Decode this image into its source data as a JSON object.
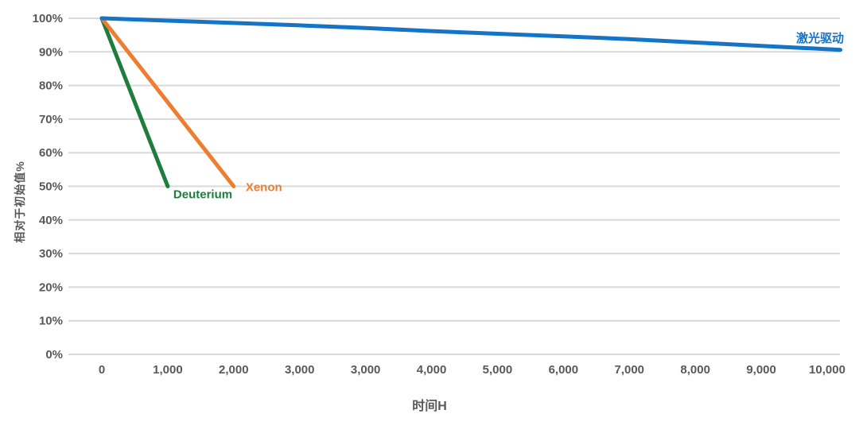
{
  "chart_data": {
    "type": "line",
    "title": "",
    "xlabel": "时间H",
    "ylabel": "相对于初始值%",
    "x_tick_labels": [
      "0",
      "1,000",
      "2,000",
      "3,000",
      "3,000",
      "4,000",
      "5,000",
      "6,000",
      "7,000",
      "8,000",
      "9,000",
      "10,000"
    ],
    "y_tick_labels": [
      "100%",
      "90%",
      "80%",
      "70%",
      "60%",
      "50%",
      "40%",
      "30%",
      "20%",
      "10%",
      "0%"
    ],
    "ylim": [
      0,
      100
    ],
    "grid": "horizontal",
    "grid_color": "#d9d9d9",
    "axis_text_color": "#595959",
    "background_color": "#ffffff",
    "series": [
      {
        "name": "Deuterium",
        "color": "#1e7c3c",
        "points": [
          [
            0,
            100
          ],
          [
            1,
            50
          ]
        ],
        "note": "drops linearly from 100% at 0 h to 50% at 1,000 h"
      },
      {
        "name": "Xenon",
        "color": "#ed7d31",
        "points": [
          [
            0,
            100
          ],
          [
            2,
            50
          ]
        ],
        "note": "drops linearly from 100% at 0 h to 50% at 2,000 h"
      },
      {
        "name": "激光驱动",
        "color": "#1574c5",
        "points": [
          [
            0,
            100
          ],
          [
            1,
            99.3
          ],
          [
            2,
            98.6
          ],
          [
            3,
            97.9
          ],
          [
            4,
            97.1
          ],
          [
            5,
            96.2
          ],
          [
            6,
            95.4
          ],
          [
            7,
            94.6
          ],
          [
            8,
            93.8
          ],
          [
            9,
            92.8
          ],
          [
            10,
            91.8
          ],
          [
            11,
            90.8
          ],
          [
            11.2,
            90.6
          ]
        ],
        "note": "declines gently from 100% at 0 h to about 91% at 10,000 h"
      }
    ]
  }
}
